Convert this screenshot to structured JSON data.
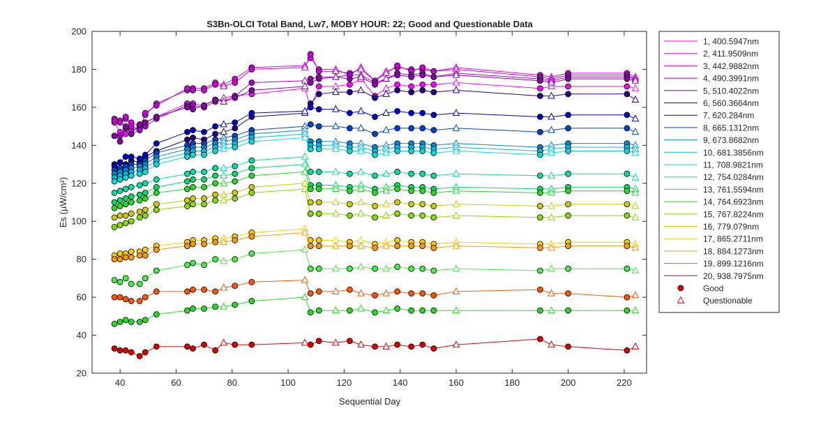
{
  "chart_data": {
    "type": "line",
    "title": "S3Bn-OLCI Total Band,  Lw7, MOBY HOUR: 22;  Good and Questionable Data",
    "xlabel": "Sequential Day",
    "ylabel": "Es (µW/cm²)",
    "xlim": [
      30,
      228
    ],
    "ylim": [
      20,
      200
    ],
    "xticks": [
      40,
      60,
      80,
      100,
      120,
      140,
      160,
      180,
      200,
      220
    ],
    "yticks": [
      20,
      40,
      60,
      80,
      100,
      120,
      140,
      160,
      180,
      200
    ],
    "grid": false,
    "legend_position": "outside-right",
    "x": [
      38,
      40,
      42,
      44,
      47,
      49,
      53,
      64,
      66,
      70,
      74,
      77,
      81,
      87,
      106,
      108,
      111,
      117,
      122,
      126,
      131,
      135,
      139,
      144,
      148,
      152,
      160,
      190,
      194,
      200,
      221,
      224
    ],
    "series": [
      {
        "name": "1, 400.5947nm",
        "color": "#ff00ff",
        "values": [
          152,
          147,
          146,
          148,
          149,
          152,
          155,
          162,
          162,
          161,
          164,
          163,
          166,
          167,
          170,
          160,
          171,
          171,
          172,
          175,
          166,
          170,
          172,
          171,
          172,
          172,
          173,
          170,
          171,
          171,
          171,
          170
        ]
      },
      {
        "name": "2, 411.9509nm",
        "color": "#dd00e8",
        "values": [
          154,
          153,
          154,
          152,
          150,
          156,
          162,
          169,
          170,
          170,
          173,
          172,
          175,
          181,
          182,
          186,
          180,
          180,
          177,
          181,
          174,
          179,
          181,
          180,
          180,
          179,
          181,
          177,
          176,
          178,
          178,
          176
        ]
      },
      {
        "name": "3, 442.9882nm",
        "color": "#cc00dd",
        "values": [
          153,
          152,
          155,
          150,
          148,
          157,
          161,
          170,
          169,
          169,
          172,
          171,
          173,
          180,
          181,
          188,
          179,
          179,
          178,
          180,
          174,
          178,
          182,
          179,
          181,
          179,
          180,
          176,
          175,
          177,
          177,
          175
        ]
      },
      {
        "name": "4, 490.3991nm",
        "color": "#aa00cc",
        "values": [
          145,
          145,
          149,
          146,
          148,
          150,
          154,
          161,
          161,
          160,
          163,
          165,
          166,
          173,
          174,
          175,
          176,
          176,
          177,
          177,
          173,
          175,
          178,
          177,
          178,
          176,
          178,
          175,
          174,
          176,
          176,
          175
        ]
      },
      {
        "name": "5, 510.4022nm",
        "color": "#8800aa",
        "values": [
          145,
          142,
          150,
          146,
          151,
          152,
          155,
          160,
          159,
          161,
          164,
          163,
          165,
          169,
          171,
          173,
          175,
          176,
          175,
          176,
          172,
          175,
          177,
          176,
          177,
          176,
          177,
          174,
          173,
          175,
          175,
          174
        ]
      },
      {
        "name": "6, 560.3664nm",
        "color": "#220088",
        "values": [
          130,
          131,
          130,
          132,
          131,
          134,
          137,
          143,
          144,
          143,
          146,
          147,
          149,
          155,
          157,
          162,
          167,
          168,
          168,
          169,
          165,
          167,
          169,
          168,
          169,
          168,
          169,
          166,
          166,
          167,
          167,
          164
        ]
      },
      {
        "name": "7,  620.284nm",
        "color": "#0000cc",
        "values": [
          129,
          131,
          134,
          134,
          133,
          135,
          141,
          147,
          148,
          147,
          150,
          151,
          152,
          157,
          158,
          160,
          159,
          159,
          157,
          158,
          155,
          157,
          158,
          157,
          157,
          156,
          157,
          155,
          155,
          156,
          156,
          154
        ]
      },
      {
        "name": "8, 665.1312nm",
        "color": "#0044cc",
        "values": [
          127,
          128,
          129,
          130,
          130,
          132,
          136,
          140,
          141,
          141,
          143,
          144,
          145,
          148,
          150,
          151,
          150,
          150,
          149,
          149,
          146,
          148,
          149,
          149,
          149,
          148,
          149,
          147,
          148,
          149,
          149,
          147
        ]
      },
      {
        "name": "9, 673.8682nm",
        "color": "#0088dd",
        "values": [
          125,
          126,
          127,
          128,
          129,
          130,
          134,
          138,
          139,
          139,
          141,
          142,
          143,
          146,
          148,
          142,
          142,
          142,
          141,
          141,
          139,
          140,
          141,
          141,
          141,
          140,
          141,
          139,
          140,
          141,
          141,
          140
        ]
      },
      {
        "name": "10, 681.3856nm",
        "color": "#00bbee",
        "values": [
          123,
          124,
          125,
          126,
          127,
          128,
          132,
          136,
          137,
          137,
          139,
          140,
          141,
          144,
          146,
          140,
          140,
          140,
          139,
          139,
          137,
          138,
          139,
          139,
          139,
          138,
          139,
          137,
          138,
          139,
          139,
          138
        ]
      },
      {
        "name": "11, 708.9821nm",
        "color": "#00dddd",
        "values": [
          121,
          122,
          123,
          124,
          125,
          126,
          130,
          134,
          135,
          135,
          137,
          138,
          139,
          142,
          144,
          138,
          138,
          138,
          137,
          137,
          135,
          136,
          137,
          137,
          137,
          136,
          137,
          135,
          136,
          137,
          137,
          136
        ]
      },
      {
        "name": "12, 754.0284nm",
        "color": "#00e0a0",
        "values": [
          115,
          116,
          117,
          118,
          119,
          120,
          122,
          125,
          126,
          126,
          128,
          128,
          129,
          132,
          134,
          126,
          126,
          126,
          125,
          126,
          124,
          125,
          126,
          125,
          125,
          124,
          125,
          124,
          124,
          125,
          125,
          123
        ]
      },
      {
        "name": "13, 761.5594nm",
        "color": "#00dd66",
        "values": [
          110,
          111,
          112,
          113,
          114,
          115,
          118,
          121,
          122,
          122,
          124,
          124,
          125,
          128,
          130,
          119,
          119,
          119,
          118,
          119,
          117,
          118,
          119,
          118,
          118,
          117,
          118,
          117,
          117,
          118,
          118,
          117
        ]
      },
      {
        "name": "14, 764.6923nm",
        "color": "#22dd22",
        "values": [
          107,
          108,
          109,
          110,
          111,
          112,
          115,
          117,
          118,
          118,
          120,
          120,
          121,
          124,
          126,
          117,
          117,
          117,
          116,
          117,
          115,
          116,
          117,
          116,
          116,
          115,
          116,
          115,
          115,
          116,
          116,
          115
        ]
      },
      {
        "name": "15, 767.8224nm",
        "color": "#88dd00",
        "values": [
          97,
          98,
          99,
          100,
          102,
          103,
          106,
          108,
          109,
          109,
          111,
          111,
          112,
          115,
          117,
          104,
          104,
          104,
          103,
          104,
          102,
          103,
          104,
          103,
          103,
          102,
          103,
          102,
          102,
          103,
          103,
          102
        ]
      },
      {
        "name": "16,  779.079nm",
        "color": "#cccc00",
        "values": [
          102,
          103,
          103,
          104,
          105,
          106,
          109,
          111,
          112,
          112,
          114,
          114,
          115,
          118,
          120,
          110,
          110,
          110,
          109,
          110,
          108,
          109,
          110,
          109,
          109,
          108,
          109,
          108,
          108,
          109,
          109,
          108
        ]
      },
      {
        "name": "17, 865.2711nm",
        "color": "#ffcc00",
        "values": [
          82,
          83,
          83,
          84,
          84,
          85,
          87,
          89,
          90,
          90,
          91,
          91,
          92,
          94,
          96,
          90,
          90,
          90,
          89,
          90,
          88,
          89,
          90,
          89,
          89,
          88,
          89,
          88,
          88,
          89,
          89,
          88
        ]
      },
      {
        "name": "18, 884.1273nm",
        "color": "#ff9900",
        "values": [
          80,
          80,
          81,
          81,
          82,
          82,
          85,
          87,
          88,
          88,
          89,
          89,
          90,
          92,
          94,
          87,
          87,
          87,
          87,
          87,
          86,
          87,
          87,
          87,
          87,
          86,
          87,
          86,
          86,
          87,
          87,
          86
        ]
      },
      {
        "name": "19, 899.1216nm",
        "color": "#ff5500",
        "values": [
          60,
          60,
          59,
          58,
          58,
          60,
          63,
          63,
          64,
          64,
          63,
          65,
          66,
          68,
          69,
          62,
          63,
          63,
          64,
          62,
          61,
          62,
          63,
          62,
          62,
          61,
          63,
          64,
          62,
          62,
          60,
          61
        ]
      },
      {
        "name": "20, 938.7975nm",
        "color": "#dd0000",
        "values": [
          33,
          32,
          32,
          31,
          29,
          31,
          34,
          34,
          33,
          35,
          32,
          36,
          35,
          35,
          36,
          35,
          37,
          36,
          37,
          35,
          34,
          34,
          35,
          34,
          35,
          33,
          35,
          38,
          35,
          34,
          32,
          34
        ]
      },
      {
        "name": "",
        "color": "#44ee44",
        "values": [
          69,
          68,
          70,
          67,
          67,
          70,
          74,
          77,
          78,
          77,
          80,
          79,
          80,
          83,
          85,
          75,
          75,
          75,
          75,
          76,
          75,
          75,
          76,
          75,
          75,
          74,
          75,
          74,
          75,
          75,
          75,
          74
        ]
      },
      {
        "name": "",
        "color": "#22dd22",
        "values": [
          46,
          47,
          48,
          47,
          47,
          48,
          51,
          53,
          54,
          54,
          55,
          55,
          56,
          58,
          60,
          52,
          53,
          53,
          53,
          54,
          52,
          53,
          54,
          53,
          53,
          53,
          53,
          53,
          53,
          53,
          53,
          53
        ]
      }
    ],
    "point_flags": [
      "good",
      "good",
      "good",
      "good",
      "good",
      "good",
      "good",
      "good",
      "good",
      "good",
      "good",
      "questionable",
      "good",
      "good",
      "questionable",
      "good",
      "good",
      "questionable",
      "good",
      "questionable",
      "good",
      "questionable",
      "good",
      "good",
      "good",
      "good",
      "questionable",
      "good",
      "questionable",
      "good",
      "good",
      "questionable"
    ],
    "legend": {
      "entries": [
        "1, 400.5947nm",
        "2, 411.9509nm",
        "3, 442.9882nm",
        "4, 490.3991nm",
        "5, 510.4022nm",
        "6, 560.3664nm",
        "7,  620.284nm",
        "8, 665.1312nm",
        "9, 673.8682nm",
        "10, 681.3856nm",
        "11, 708.9821nm",
        "12, 754.0284nm",
        "13, 761.5594nm",
        "14, 764.6923nm",
        "15, 767.8224nm",
        "16,  779.079nm",
        "17, 865.2711nm",
        "18, 884.1273nm",
        "19, 899.1216nm",
        "20, 938.7975nm"
      ],
      "colors": [
        "#ff00ff",
        "#dd00e8",
        "#cc00dd",
        "#aa00cc",
        "#8800aa",
        "#220088",
        "#0000cc",
        "#0044cc",
        "#0088dd",
        "#00bbee",
        "#00dddd",
        "#00e0a0",
        "#00dd66",
        "#22dd22",
        "#88dd00",
        "#cccc00",
        "#ffcc00",
        "#ff9900",
        "#ff5500",
        "#dd0000"
      ],
      "marker_entries": [
        {
          "label": "Good",
          "marker": "filled-circle",
          "color": "#dd0000"
        },
        {
          "label": "Questionable",
          "marker": "open-triangle",
          "color": "#dd0000"
        }
      ]
    }
  }
}
